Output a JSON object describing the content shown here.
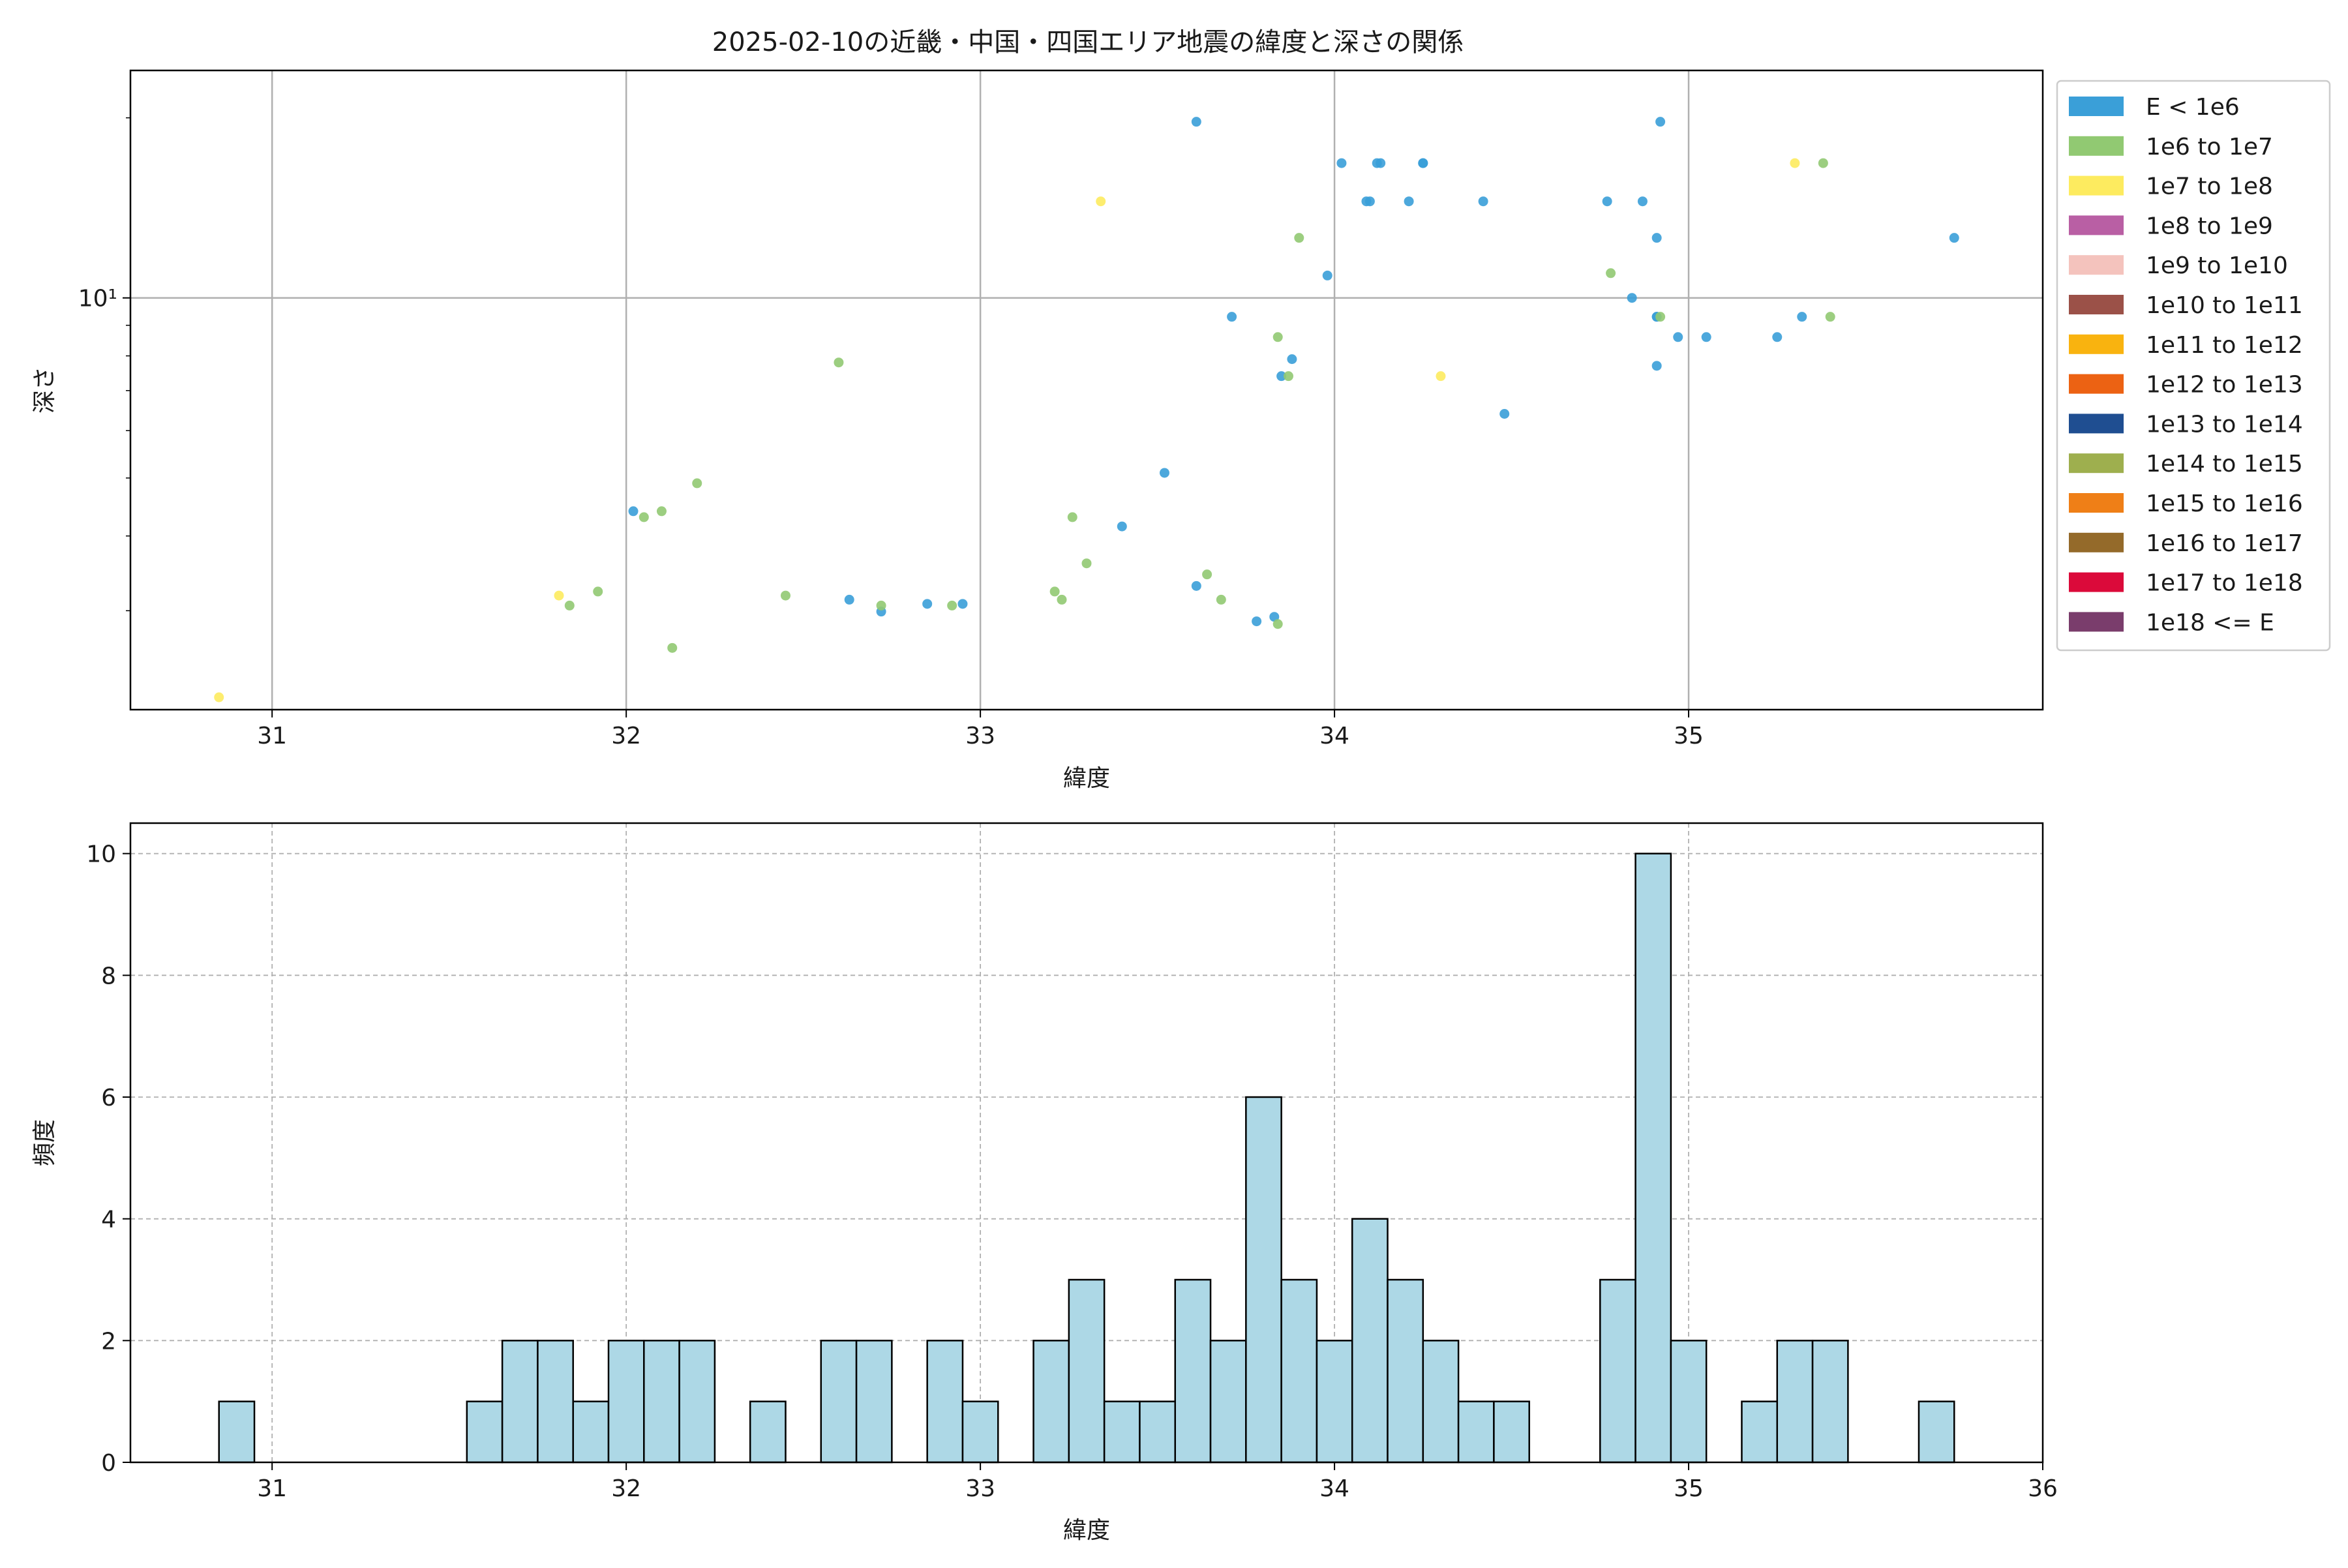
{
  "chart_data": [
    {
      "type": "scatter",
      "title": "2025-02-10の近畿・中国・四国エリア地震の緯度と深さの関係",
      "xlabel": "緯度",
      "ylabel": "深さ",
      "xlim": [
        30.6,
        36.0
      ],
      "ylim": [
        2.05,
        24.0
      ],
      "y_scale": "log",
      "grid": true,
      "x_ticks": [
        31,
        32,
        33,
        34,
        35
      ],
      "x_tick_labels": [
        "31",
        "32",
        "33",
        "34",
        "35"
      ],
      "y_ticks": [
        10
      ],
      "y_tick_labels": [
        "10¹"
      ],
      "legend_position": "outside-right",
      "legend": [
        {
          "label": "E < 1e6",
          "color": "#3a9fd8"
        },
        {
          "label": "1e6 to 1e7",
          "color": "#91c972"
        },
        {
          "label": "1e7 to 1e8",
          "color": "#fdeb5f"
        },
        {
          "label": "1e8 to 1e9",
          "color": "#b95fa4"
        },
        {
          "label": "1e9 to 1e10",
          "color": "#f4c3bd"
        },
        {
          "label": "1e10 to 1e11",
          "color": "#9b5148"
        },
        {
          "label": "1e11 to 1e12",
          "color": "#f9b30f"
        },
        {
          "label": "1e12 to 1e13",
          "color": "#ec6213"
        },
        {
          "label": "1e13 to 1e14",
          "color": "#1f4e91"
        },
        {
          "label": "1e14 to 1e15",
          "color": "#9eaf4e"
        },
        {
          "label": "1e15 to 1e16",
          "color": "#ef7f17"
        },
        {
          "label": "1e16 to 1e17",
          "color": "#946a2a"
        },
        {
          "label": "1e17 to 1e18",
          "color": "#db0a3a"
        },
        {
          "label": "1e18 <= E",
          "color": "#7a3d6c"
        }
      ],
      "series": [
        {
          "name": "E < 1e6",
          "color": "#3a9fd8",
          "points": [
            [
              32.02,
              4.4
            ],
            [
              32.63,
              3.13
            ],
            [
              32.72,
              2.99
            ],
            [
              32.85,
              3.08
            ],
            [
              32.95,
              3.08
            ],
            [
              33.4,
              4.15
            ],
            [
              33.52,
              5.1
            ],
            [
              33.61,
              3.3
            ],
            [
              33.61,
              19.7
            ],
            [
              33.71,
              9.3
            ],
            [
              33.78,
              2.88
            ],
            [
              33.83,
              2.93
            ],
            [
              33.85,
              7.4
            ],
            [
              33.88,
              7.9
            ],
            [
              33.98,
              10.9
            ],
            [
              34.02,
              16.8
            ],
            [
              34.09,
              14.5
            ],
            [
              34.1,
              14.5
            ],
            [
              34.12,
              16.8
            ],
            [
              34.13,
              16.8
            ],
            [
              34.21,
              14.5
            ],
            [
              34.25,
              16.8
            ],
            [
              34.25,
              16.8
            ],
            [
              34.42,
              14.5
            ],
            [
              34.48,
              6.4
            ],
            [
              34.77,
              14.5
            ],
            [
              34.84,
              10.0
            ],
            [
              34.87,
              14.5
            ],
            [
              34.91,
              9.3
            ],
            [
              34.91,
              9.3
            ],
            [
              34.91,
              12.6
            ],
            [
              34.91,
              7.7
            ],
            [
              34.92,
              19.7
            ],
            [
              34.97,
              8.6
            ],
            [
              35.05,
              8.6
            ],
            [
              35.25,
              8.6
            ],
            [
              35.32,
              9.3
            ],
            [
              35.75,
              12.6
            ]
          ]
        },
        {
          "name": "1e6 to 1e7",
          "color": "#91c972",
          "points": [
            [
              31.84,
              3.06
            ],
            [
              31.92,
              3.23
            ],
            [
              32.05,
              4.3
            ],
            [
              32.1,
              4.4
            ],
            [
              32.13,
              2.6
            ],
            [
              32.2,
              4.9
            ],
            [
              32.45,
              3.18
            ],
            [
              32.6,
              7.8
            ],
            [
              32.72,
              3.06
            ],
            [
              32.92,
              3.06
            ],
            [
              33.21,
              3.23
            ],
            [
              33.23,
              3.13
            ],
            [
              33.26,
              4.3
            ],
            [
              33.3,
              3.6
            ],
            [
              33.64,
              3.45
            ],
            [
              33.68,
              3.13
            ],
            [
              33.84,
              8.6
            ],
            [
              33.84,
              2.85
            ],
            [
              33.87,
              7.4
            ],
            [
              33.9,
              12.6
            ],
            [
              34.78,
              11.0
            ],
            [
              34.92,
              9.3
            ],
            [
              35.38,
              16.8
            ],
            [
              35.4,
              9.3
            ]
          ]
        },
        {
          "name": "1e7 to 1e8",
          "color": "#fdeb5f",
          "points": [
            [
              30.85,
              2.15
            ],
            [
              31.81,
              3.18
            ],
            [
              33.34,
              14.5
            ],
            [
              34.3,
              7.4
            ],
            [
              35.3,
              16.8
            ]
          ]
        }
      ]
    },
    {
      "type": "bar",
      "title": "",
      "xlabel": "緯度",
      "ylabel": "頻度",
      "xlim": [
        30.6,
        36.0
      ],
      "ylim": [
        0,
        10.5
      ],
      "grid": true,
      "grid_style": "dashed",
      "bar_color": "#add8e6",
      "edge_color": "#000000",
      "x_ticks": [
        31,
        32,
        33,
        34,
        35,
        36
      ],
      "x_tick_labels": [
        "31",
        "32",
        "33",
        "34",
        "35",
        "36"
      ],
      "y_ticks": [
        0,
        2,
        4,
        6,
        8,
        10
      ],
      "y_tick_labels": [
        "0",
        "2",
        "4",
        "6",
        "8",
        "10"
      ],
      "bin_start": 30.85,
      "bin_width": 0.1,
      "values": [
        1,
        0,
        0,
        0,
        0,
        0,
        0,
        1,
        2,
        2,
        1,
        2,
        2,
        2,
        0,
        1,
        0,
        2,
        2,
        0,
        2,
        1,
        0,
        2,
        3,
        1,
        1,
        3,
        2,
        6,
        3,
        2,
        4,
        3,
        2,
        1,
        1,
        0,
        0,
        3,
        10,
        2,
        0,
        1,
        2,
        2,
        0,
        0,
        1
      ]
    }
  ]
}
